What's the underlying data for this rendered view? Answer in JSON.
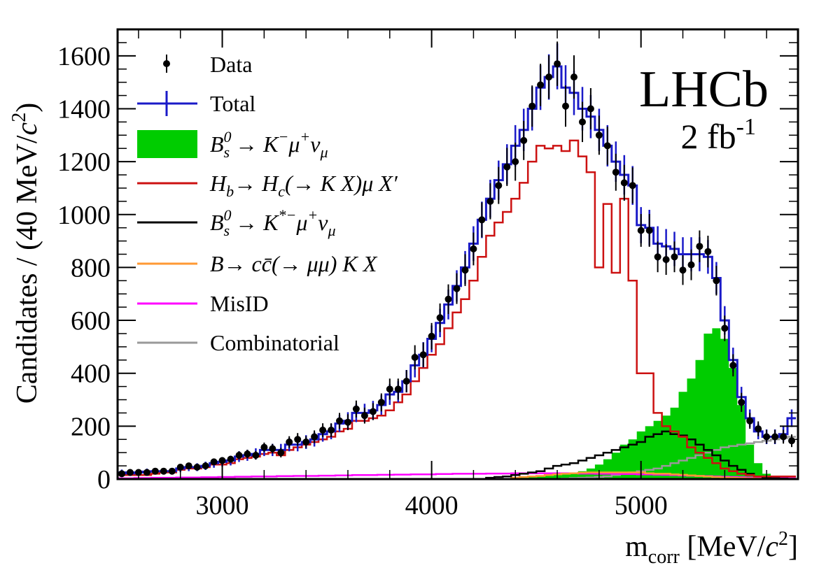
{
  "chart_data": {
    "type": "histogram",
    "xlim": [
      2500,
      5750
    ],
    "ylim": [
      0,
      1700
    ],
    "bin_width": 40,
    "xlabel": "m_corr [MeV/c²]",
    "ylabel": "Candidates / (40 MeV/c²)",
    "x_ticks": [
      3000,
      4000,
      5000
    ],
    "y_ticks": [
      0,
      200,
      400,
      600,
      800,
      1000,
      1200,
      1400,
      1600
    ],
    "experiment": "LHCb",
    "luminosity": "2 fb-1",
    "legend_position": "top-left",
    "colors": {
      "data": "#000000",
      "total": "#1a1ac8",
      "signal": "#00cc00",
      "hb_hc": "#cc1111",
      "bs_kstar": "#000000",
      "ccbar": "#ff9933",
      "misid": "#ff00ff",
      "combinatorial": "#999999"
    },
    "legend": [
      {
        "key": "data",
        "label": "Data",
        "style": "marker"
      },
      {
        "key": "total",
        "label": "Total",
        "style": "line-err"
      },
      {
        "key": "signal",
        "label": "B_s^0 → K⁻μ⁺ν_μ",
        "style": "fill"
      },
      {
        "key": "hb_hc",
        "label": "H_b → H_c(→ K X)μ X′",
        "style": "line"
      },
      {
        "key": "bs_kstar",
        "label": "B_s^0 → K*⁻μ⁺ν_μ",
        "style": "line"
      },
      {
        "key": "ccbar",
        "label": "B → cc̄(→ μμ) K X",
        "style": "line"
      },
      {
        "key": "misid",
        "label": "MisID",
        "style": "line"
      },
      {
        "key": "combinatorial",
        "label": "Combinatorial",
        "style": "line"
      }
    ],
    "series": {
      "data": {
        "x": [
          2520,
          2560,
          2600,
          2640,
          2680,
          2720,
          2760,
          2800,
          2840,
          2880,
          2920,
          2960,
          3000,
          3040,
          3080,
          3120,
          3160,
          3200,
          3240,
          3280,
          3320,
          3360,
          3400,
          3440,
          3480,
          3520,
          3560,
          3600,
          3640,
          3680,
          3720,
          3760,
          3800,
          3840,
          3880,
          3920,
          3960,
          4000,
          4040,
          4080,
          4120,
          4160,
          4200,
          4240,
          4280,
          4320,
          4360,
          4400,
          4440,
          4480,
          4520,
          4560,
          4600,
          4640,
          4680,
          4720,
          4760,
          4800,
          4840,
          4880,
          4920,
          4960,
          5000,
          5040,
          5080,
          5120,
          5160,
          5200,
          5240,
          5280,
          5320,
          5360,
          5400,
          5440,
          5480,
          5520,
          5560,
          5600,
          5640,
          5680,
          5720
        ],
        "y": [
          20,
          25,
          25,
          25,
          30,
          30,
          30,
          45,
          50,
          45,
          50,
          65,
          70,
          75,
          90,
          95,
          90,
          120,
          115,
          100,
          140,
          150,
          140,
          160,
          185,
          185,
          220,
          215,
          265,
          240,
          255,
          290,
          340,
          340,
          370,
          460,
          470,
          540,
          610,
          680,
          720,
          790,
          870,
          980,
          1050,
          1110,
          1180,
          1200,
          1280,
          1410,
          1490,
          1520,
          1570,
          1410,
          1520,
          1350,
          1400,
          1300,
          1260,
          1160,
          1120,
          1110,
          940,
          940,
          840,
          830,
          840,
          790,
          810,
          880,
          860,
          750,
          570,
          430,
          290,
          220,
          190,
          160,
          160,
          160,
          145
        ],
        "err": [
          10,
          10,
          10,
          10,
          10,
          10,
          10,
          10,
          10,
          10,
          10,
          10,
          10,
          12,
          15,
          16,
          16,
          18,
          18,
          18,
          22,
          24,
          22,
          24,
          26,
          26,
          30,
          30,
          32,
          30,
          32,
          34,
          40,
          40,
          42,
          46,
          46,
          50,
          54,
          56,
          58,
          60,
          62,
          66,
          68,
          70,
          72,
          72,
          74,
          78,
          80,
          82,
          84,
          78,
          82,
          76,
          78,
          74,
          72,
          70,
          68,
          68,
          62,
          62,
          58,
          58,
          58,
          56,
          58,
          60,
          60,
          56,
          48,
          42,
          36,
          30,
          28,
          26,
          26,
          26,
          24
        ]
      },
      "total": {
        "y": [
          25,
          22,
          25,
          28,
          30,
          30,
          30,
          40,
          45,
          45,
          50,
          60,
          65,
          70,
          85,
          90,
          95,
          110,
          110,
          110,
          130,
          130,
          140,
          150,
          170,
          180,
          210,
          220,
          250,
          250,
          260,
          280,
          320,
          330,
          370,
          430,
          470,
          530,
          590,
          660,
          730,
          800,
          890,
          980,
          1060,
          1130,
          1190,
          1260,
          1320,
          1400,
          1480,
          1520,
          1560,
          1480,
          1460,
          1400,
          1370,
          1320,
          1260,
          1200,
          1150,
          1110,
          960,
          950,
          890,
          880,
          870,
          850,
          850,
          850,
          840,
          760,
          600,
          450,
          310,
          230,
          180,
          160,
          160,
          170,
          230
        ]
      },
      "signal": {
        "y": [
          0,
          0,
          0,
          0,
          0,
          0,
          0,
          0,
          0,
          0,
          0,
          0,
          0,
          0,
          0,
          0,
          0,
          0,
          0,
          0,
          0,
          0,
          0,
          0,
          0,
          0,
          0,
          0,
          0,
          0,
          0,
          0,
          0,
          0,
          0,
          0,
          0,
          0,
          0,
          0,
          0,
          0,
          0,
          0,
          2,
          3,
          4,
          5,
          6,
          8,
          10,
          12,
          15,
          20,
          25,
          30,
          40,
          55,
          75,
          100,
          130,
          150,
          180,
          200,
          220,
          240,
          270,
          330,
          380,
          450,
          550,
          570,
          530,
          420,
          280,
          130,
          60,
          20,
          8,
          4,
          2
        ]
      },
      "hb_hc": {
        "y": [
          15,
          15,
          15,
          15,
          20,
          25,
          25,
          35,
          40,
          40,
          45,
          55,
          55,
          60,
          75,
          80,
          85,
          95,
          100,
          90,
          110,
          120,
          130,
          140,
          150,
          160,
          180,
          190,
          220,
          220,
          230,
          240,
          260,
          290,
          320,
          370,
          420,
          470,
          510,
          570,
          630,
          680,
          750,
          840,
          920,
          970,
          1010,
          1060,
          1120,
          1200,
          1260,
          1250,
          1260,
          1240,
          1280,
          1220,
          1160,
          800,
          1040,
          780,
          1060,
          750,
          400,
          400,
          250,
          200,
          180,
          160,
          120,
          100,
          80,
          60,
          40,
          30,
          20,
          15,
          10,
          10,
          10,
          10,
          10
        ]
      },
      "bs_kstar": {
        "y": [
          0,
          0,
          0,
          0,
          0,
          0,
          0,
          0,
          0,
          0,
          0,
          0,
          0,
          0,
          0,
          0,
          0,
          0,
          0,
          0,
          0,
          0,
          0,
          0,
          0,
          0,
          0,
          0,
          0,
          0,
          0,
          0,
          0,
          0,
          0,
          0,
          0,
          0,
          0,
          0,
          0,
          0,
          0,
          0,
          5,
          8,
          10,
          15,
          20,
          25,
          30,
          40,
          50,
          55,
          60,
          70,
          80,
          90,
          100,
          110,
          120,
          130,
          140,
          160,
          170,
          180,
          170,
          165,
          150,
          130,
          110,
          90,
          70,
          50,
          35,
          20,
          10,
          5,
          3,
          2,
          1
        ]
      },
      "ccbar": {
        "y": [
          0,
          0,
          0,
          0,
          0,
          0,
          0,
          0,
          0,
          0,
          0,
          0,
          0,
          0,
          0,
          0,
          0,
          0,
          0,
          0,
          0,
          0,
          0,
          0,
          0,
          0,
          0,
          0,
          0,
          0,
          0,
          0,
          0,
          0,
          0,
          0,
          0,
          0,
          0,
          0,
          0,
          0,
          0,
          0,
          0,
          0,
          0,
          5,
          8,
          10,
          12,
          15,
          18,
          20,
          22,
          24,
          25,
          25,
          25,
          25,
          25,
          25,
          25,
          22,
          20,
          20,
          18,
          16,
          14,
          12,
          10,
          8,
          6,
          5,
          4,
          3,
          2,
          2,
          1,
          1,
          1
        ]
      },
      "misid": {
        "y": [
          3,
          3,
          4,
          4,
          5,
          5,
          5,
          6,
          6,
          6,
          7,
          7,
          8,
          8,
          9,
          9,
          10,
          10,
          10,
          11,
          11,
          12,
          12,
          12,
          13,
          13,
          14,
          14,
          15,
          15,
          15,
          16,
          16,
          17,
          17,
          18,
          18,
          18,
          19,
          19,
          20,
          20,
          20,
          20,
          21,
          21,
          21,
          22,
          22,
          22,
          22,
          22,
          22,
          22,
          22,
          21,
          21,
          20,
          20,
          20,
          19,
          19,
          18,
          18,
          17,
          16,
          15,
          14,
          13,
          12,
          11,
          10,
          9,
          8,
          7,
          6,
          5,
          5,
          4,
          4,
          3
        ]
      },
      "combinatorial": {
        "y": [
          0,
          0,
          0,
          0,
          0,
          0,
          0,
          0,
          0,
          0,
          0,
          0,
          0,
          0,
          0,
          0,
          0,
          0,
          0,
          0,
          0,
          0,
          0,
          0,
          0,
          0,
          0,
          0,
          0,
          0,
          0,
          0,
          0,
          0,
          0,
          0,
          0,
          0,
          0,
          0,
          0,
          0,
          0,
          0,
          0,
          0,
          0,
          0,
          0,
          0,
          0,
          0,
          0,
          2,
          4,
          5,
          6,
          8,
          10,
          15,
          20,
          25,
          30,
          35,
          40,
          50,
          60,
          70,
          80,
          90,
          100,
          110,
          120,
          125,
          130,
          135,
          140,
          145,
          150,
          155,
          160
        ]
      }
    }
  }
}
